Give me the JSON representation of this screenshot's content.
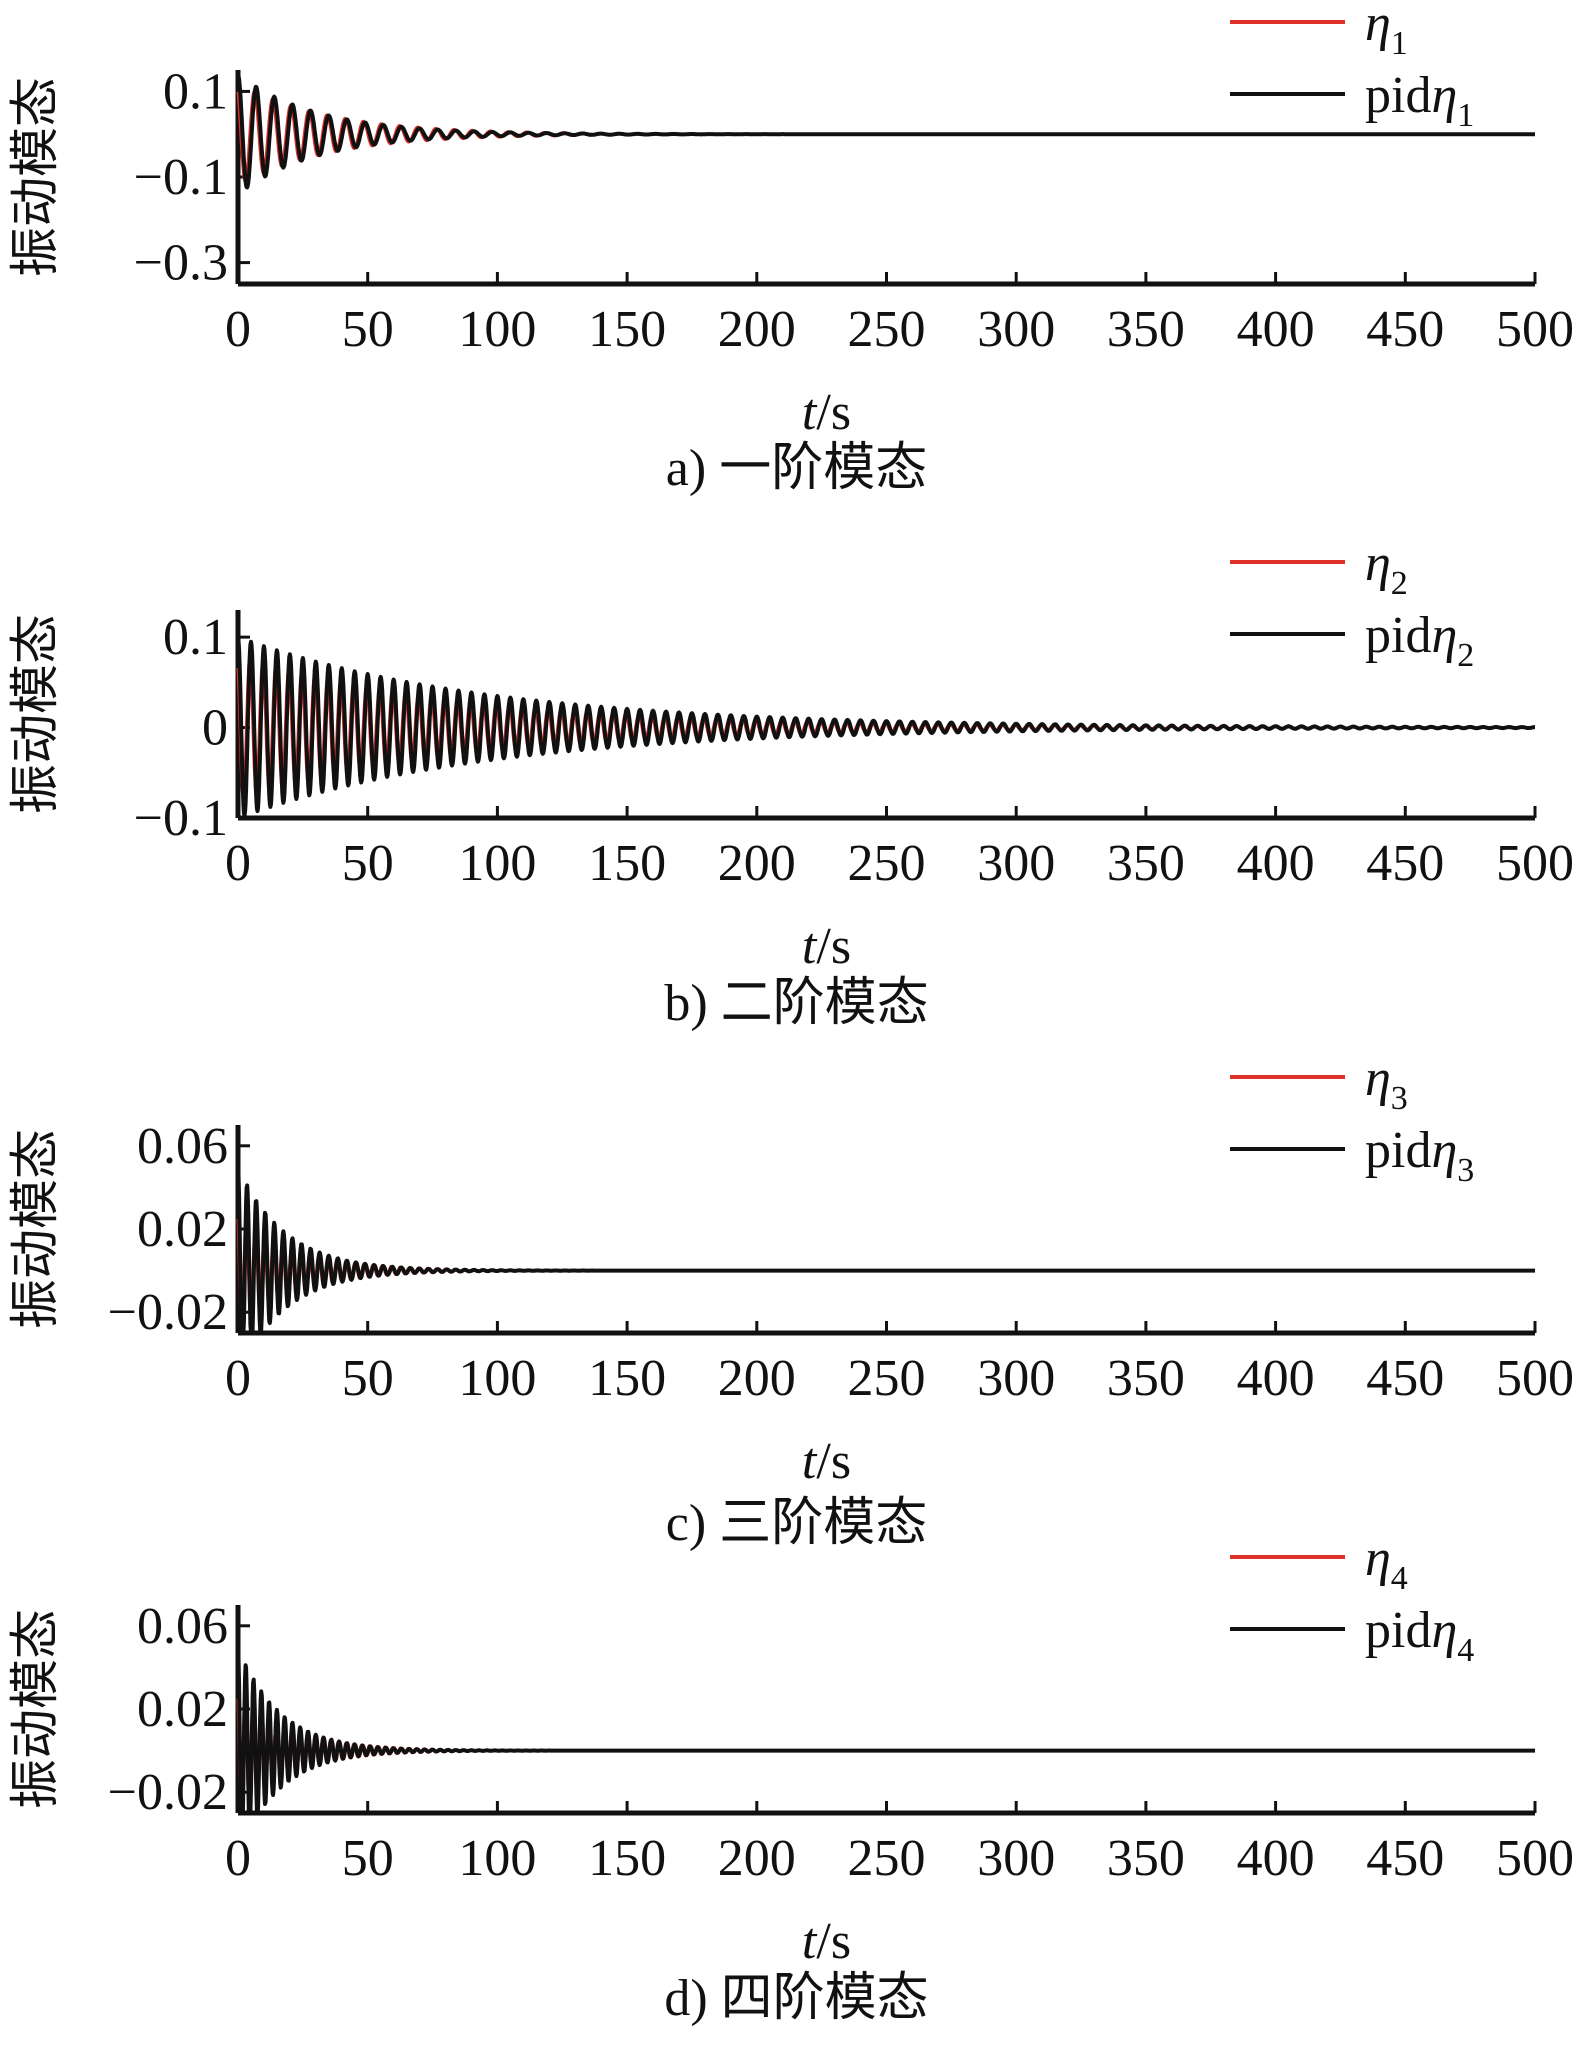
{
  "chart_data": [
    {
      "type": "line",
      "ylabel": "振动模态",
      "xlabel": "t/s",
      "xlabel_italic_part": "t",
      "xlabel_rest": "/s",
      "caption": "a) 一阶模态",
      "xlim": [
        0,
        500
      ],
      "ylim": [
        -0.35,
        0.15
      ],
      "x_ticks": [
        0,
        50,
        100,
        150,
        200,
        250,
        300,
        350,
        400,
        450,
        500
      ],
      "x_tick_labels": [
        "0",
        "50",
        "100",
        "150",
        "200",
        "250",
        "300",
        "350",
        "400",
        "450",
        "500"
      ],
      "y_ticks": [
        0.1,
        -0.1,
        -0.3
      ],
      "y_tick_labels": [
        "0.1",
        "−0.1",
        "−0.3"
      ],
      "legend_position": "top-right",
      "series": [
        {
          "name": "η1",
          "legend_main": "η",
          "legend_sub": "1",
          "color": "#e0302a",
          "initial_amplitude": 0.12,
          "decay_time_s": 35,
          "period_s": 7,
          "steady_value": 0.0
        },
        {
          "name": "pidη1",
          "legend_main": "pidη",
          "legend_sub": "1",
          "color": "#111111",
          "initial_amplitude": 0.14,
          "decay_time_s": 30,
          "period_s": 7,
          "steady_value": 0.0
        }
      ]
    },
    {
      "type": "line",
      "ylabel": "振动模态",
      "xlabel": "t/s",
      "xlabel_italic_part": "t",
      "xlabel_rest": "/s",
      "caption": "b) 二阶模态",
      "xlim": [
        0,
        500
      ],
      "ylim": [
        -0.1,
        0.13
      ],
      "x_ticks": [
        0,
        50,
        100,
        150,
        200,
        250,
        300,
        350,
        400,
        450,
        500
      ],
      "x_tick_labels": [
        "0",
        "50",
        "100",
        "150",
        "200",
        "250",
        "300",
        "350",
        "400",
        "450",
        "500"
      ],
      "y_ticks": [
        0.1,
        0,
        -0.1
      ],
      "y_tick_labels": [
        "0.1",
        "0",
        "−0.1"
      ],
      "legend_position": "top-right",
      "series": [
        {
          "name": "η2",
          "legend_main": "η",
          "legend_sub": "2",
          "color": "#e0302a",
          "initial_amplitude": 0.08,
          "decay_time_s": 90,
          "period_s": 5,
          "steady_value": 0.0
        },
        {
          "name": "pidη2",
          "legend_main": "pidη",
          "legend_sub": "2",
          "color": "#111111",
          "initial_amplitude": 0.1,
          "decay_time_s": 95,
          "period_s": 5,
          "steady_value": 0.0
        }
      ]
    },
    {
      "type": "line",
      "ylabel": "振动模态",
      "xlabel": "t/s",
      "xlabel_italic_part": "t",
      "xlabel_rest": "/s",
      "caption": "c) 三阶模态",
      "xlim": [
        0,
        500
      ],
      "ylim": [
        -0.03,
        0.07
      ],
      "x_ticks": [
        0,
        50,
        100,
        150,
        200,
        250,
        300,
        350,
        400,
        450,
        500
      ],
      "x_tick_labels": [
        "0",
        "50",
        "100",
        "150",
        "200",
        "250",
        "300",
        "350",
        "400",
        "450",
        "500"
      ],
      "y_ticks": [
        0.06,
        0.02,
        -0.02
      ],
      "y_tick_labels": [
        "0.06",
        "0.02",
        "−0.02"
      ],
      "legend_position": "top-right",
      "series": [
        {
          "name": "η3",
          "legend_main": "η",
          "legend_sub": "3",
          "color": "#e0302a",
          "initial_amplitude": 0.03,
          "decay_time_s": 22,
          "period_s": 3.5,
          "steady_value": 0.0
        },
        {
          "name": "pidη3",
          "legend_main": "pidη",
          "legend_sub": "3",
          "color": "#111111",
          "initial_amplitude": 0.05,
          "decay_time_s": 18,
          "period_s": 3.5,
          "steady_value": 0.0
        }
      ]
    },
    {
      "type": "line",
      "ylabel": "振动模态",
      "xlabel": "t/s",
      "xlabel_italic_part": "t",
      "xlabel_rest": "/s",
      "caption": "d) 四阶模态",
      "xlim": [
        0,
        500
      ],
      "ylim": [
        -0.03,
        0.07
      ],
      "x_ticks": [
        0,
        50,
        100,
        150,
        200,
        250,
        300,
        350,
        400,
        450,
        500
      ],
      "x_tick_labels": [
        "0",
        "50",
        "100",
        "150",
        "200",
        "250",
        "300",
        "350",
        "400",
        "450",
        "500"
      ],
      "y_ticks": [
        0.06,
        0.02,
        -0.02
      ],
      "y_tick_labels": [
        "0.06",
        "0.02",
        "−0.02"
      ],
      "legend_position": "top-right",
      "series": [
        {
          "name": "η4",
          "legend_main": "η",
          "legend_sub": "4",
          "color": "#e0302a",
          "initial_amplitude": 0.03,
          "decay_time_s": 20,
          "period_s": 3,
          "steady_value": 0.0
        },
        {
          "name": "pidη4",
          "legend_main": "pidη",
          "legend_sub": "4",
          "color": "#111111",
          "initial_amplitude": 0.05,
          "decay_time_s": 16,
          "period_s": 3,
          "steady_value": 0.0
        }
      ]
    }
  ]
}
